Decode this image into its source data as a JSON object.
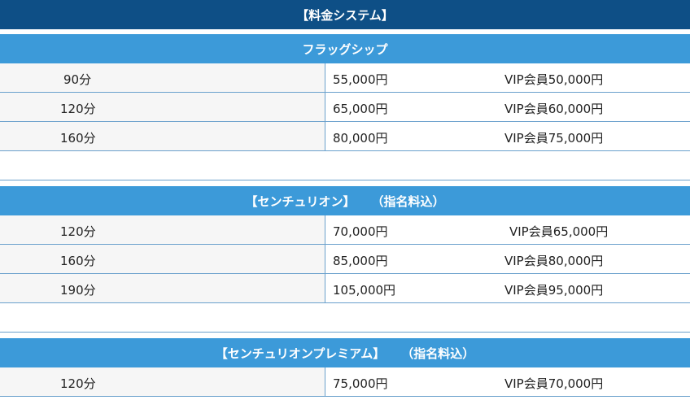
{
  "page_title": "【料金システム】",
  "sections": [
    {
      "title": "フラッグシップ",
      "note": "",
      "rows": [
        {
          "time": "90分",
          "price": "55,000円",
          "vip": "VIP会員50,000円"
        },
        {
          "time": "120分",
          "price": "65,000円",
          "vip": "VIP会員60,000円"
        },
        {
          "time": "160分",
          "price": "80,000円",
          "vip": "VIP会員75,000円"
        }
      ]
    },
    {
      "title": "【センチュリオン】",
      "note": "（指名料込）",
      "rows": [
        {
          "time": "120分",
          "price": "70,000円",
          "vip": "VIP会員65,000円"
        },
        {
          "time": "160分",
          "price": "85,000円",
          "vip": "VIP会員80,000円"
        },
        {
          "time": "190分",
          "price": "105,000円",
          "vip": "VIP会員95,000円"
        }
      ]
    },
    {
      "title": "【センチュリオンプレミアム】",
      "note": "（指名料込）",
      "rows": [
        {
          "time": "120分",
          "price": "75,000円",
          "vip": "VIP会員70,000円"
        }
      ]
    }
  ],
  "colors": {
    "page_header": "#0e4f86",
    "section_header": "#3c9ad9",
    "border": "#6aa0cc"
  }
}
